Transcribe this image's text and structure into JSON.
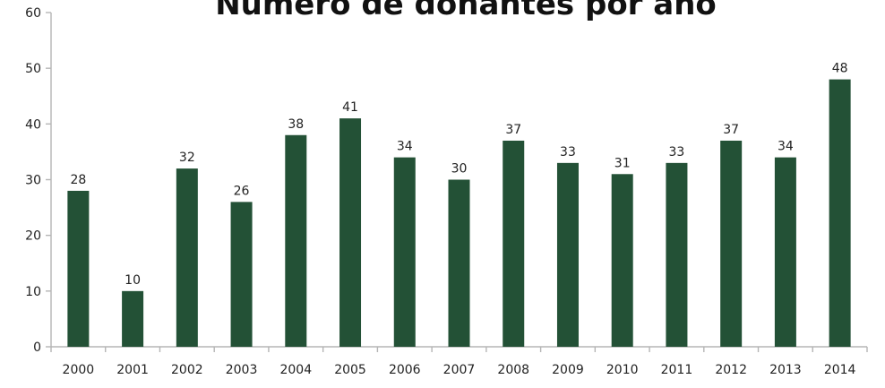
{
  "chart_data": {
    "type": "bar",
    "title": "Número de donantes por año",
    "xlabel": "",
    "ylabel": "",
    "categories": [
      "2000",
      "2001",
      "2002",
      "2003",
      "2004",
      "2005",
      "2006",
      "2007",
      "2008",
      "2009",
      "2010",
      "2011",
      "2012",
      "2013",
      "2014"
    ],
    "values": [
      28,
      10,
      32,
      26,
      38,
      41,
      34,
      30,
      37,
      33,
      31,
      33,
      37,
      34,
      48
    ],
    "ylim": [
      0,
      60
    ],
    "yticks": [
      0,
      10,
      20,
      30,
      40,
      50,
      60
    ],
    "grid": false,
    "legend": "none",
    "data_labels": true,
    "bar_color": "#235136",
    "axis_color": "#b5b5b5"
  }
}
